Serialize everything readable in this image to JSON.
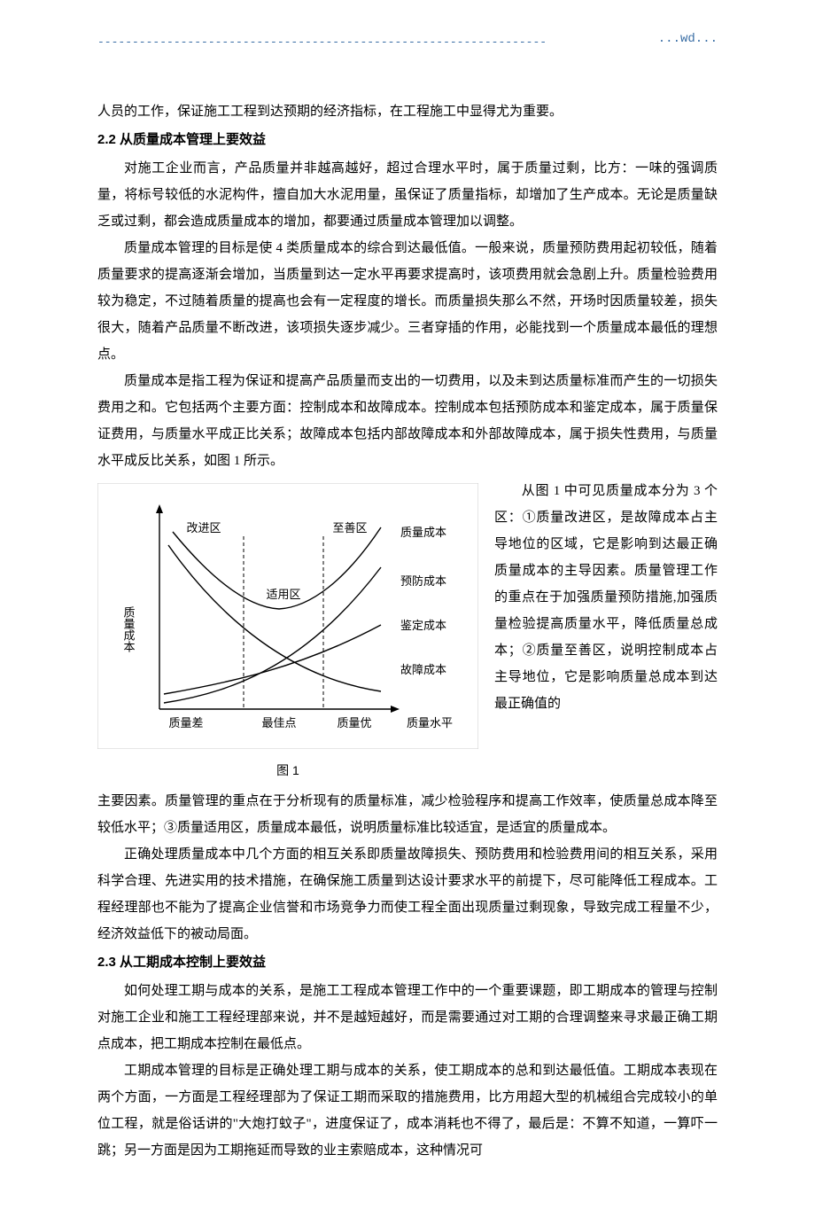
{
  "header": {
    "dashes": "-----------------------------------------------------------------",
    "wd": "...wd..."
  },
  "lead": "人员的工作，保证施工工程到达预期的经济指标，在工程施工中显得尤为重要。",
  "s22_title": "2.2 从质量成本管理上要效益",
  "s22_p1": "对施工企业而言，产品质量并非越高越好，超过合理水平时，属于质量过剩，比方：一味的强调质量，将标号较低的水泥构件，擅自加大水泥用量，虽保证了质量指标，却增加了生产成本。无论是质量缺乏或过剩，都会造成质量成本的增加，都要通过质量成本管理加以调整。",
  "s22_p2": "质量成本管理的目标是使 4 类质量成本的综合到达最低值。一般来说，质量预防费用起初较低，随着质量要求的提高逐渐会增加，当质量到达一定水平再要求提高时，该项费用就会急剧上升。质量检验费用较为稳定，不过随着质量的提高也会有一定程度的增长。而质量损失那么不然，开场时因质量较差，损失很大，随着产品质量不断改进，该项损失逐步减少。三者穿插的作用，必能找到一个质量成本最低的理想点。",
  "s22_p3": "质量成本是指工程为保证和提高产品质量而支出的一切费用，以及未到达质量标准而产生的一切损失费用之和。它包括两个主要方面：控制成本和故障成本。控制成本包括预防成本和鉴定成本，属于质量保证费用，与质量水平成正比关系；故障成本包括内部故障成本和外部故障成本，属于损失性费用，与质量水平成反比关系，如图 1 所示。",
  "s22_wrap": "从图 1 中可见质量成本分为 3 个区：①质量改进区，是故障成本占主导地位的区域，它是影响到达最正确质量成本的主导因素。质量管理工作的重点在于加强质量预防措施,加强质量检验提高质量水平，降低质量总成本；②质量至善区，说明控制成本占主导地位，它是影响质量总成本到达最正确值的",
  "s22_after": "主要因素。质量管理的重点在于分析现有的质量标准，减少检验程序和提高工作效率，使质量总成本降至较低水平；③质量适用区，质量成本最低，说明质量标准比较适宜，是适宜的质量成本。",
  "s22_p5": "正确处理质量成本中几个方面的相互关系即质量故障损失、预防费用和检验费用间的相互关系，采用科学合理、先进实用的技术措施，在确保施工质量到达设计要求水平的前提下，尽可能降低工程成本。工程经理部也不能为了提高企业信誉和市场竞争力而使工程全面出现质量过剩现象，导致完成工程量不少，经济效益低下的被动局面。",
  "s23_title": "2.3 从工期成本控制上要效益",
  "s23_p1": "如何处理工期与成本的关系，是施工工程成本管理工作中的一个重要课题，即工期成本的管理与控制对施工企业和施工工程经理部来说，并不是越短越好，而是需要通过对工期的合理调整来寻求最正确工期点成本，把工期成本控制在最低点。",
  "s23_p2": "工期成本管理的目标是正确处理工期与成本的关系，使工期成本的总和到达最低值。工期成本表现在两个方面，一方面是工程经理部为了保证工期而采取的措施费用，比方用超大型的机械组合完成较小的单位工程，就是俗话讲的\"大炮打蚊子\"，进度保证了，成本消耗也不得了，最后是：不算不知道，一算吓一跳；另一方面是因为工期拖延而导致的业主索赔成本，这种情况可",
  "figure": {
    "caption": "图 1",
    "y_axis_label": "质量成本",
    "x_axis_label": "质量水平",
    "x_ticks": [
      "质量差",
      "最佳点",
      "质量优"
    ],
    "regions": [
      "改进区",
      "适用区",
      "至善区"
    ],
    "curves": [
      "质量成本",
      "预防成本",
      "鉴定成本",
      "故障成本"
    ],
    "colors": {
      "axis": "#000000",
      "curve": "#000000",
      "text": "#000000",
      "dashed": "#000000",
      "border": "#cccccc",
      "background": "#ffffff"
    },
    "stroke_width": 1.4,
    "font_size": 13,
    "font_family": "SimSun"
  }
}
